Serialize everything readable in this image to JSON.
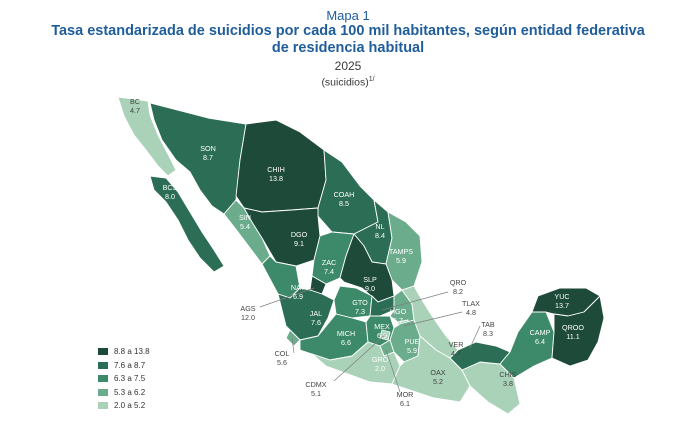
{
  "header": {
    "kicker": "Mapa 1",
    "title_line1": "Tasa estandarizada de suicidios por cada 100 mil habitantes, según entidad federativa",
    "title_line2": "de residencia habitual",
    "year": "2025",
    "unit": "(suicidios)",
    "unit_note": "1/"
  },
  "legend": [
    {
      "label": "8.8 a 13.8",
      "color": "#1e4a3a"
    },
    {
      "label": "7.6 a 8.7",
      "color": "#2c6e55"
    },
    {
      "label": "6.3 a 7.5",
      "color": "#3d8a6a"
    },
    {
      "label": "5.3 a 6.2",
      "color": "#6aac8c"
    },
    {
      "label": "2.0 a 5.2",
      "color": "#a9d2b9"
    }
  ],
  "states": [
    {
      "abbr": "BC",
      "value": "4.7"
    },
    {
      "abbr": "SON",
      "value": "8.7"
    },
    {
      "abbr": "CHIH",
      "value": "13.8"
    },
    {
      "abbr": "COAH",
      "value": "8.5"
    },
    {
      "abbr": "BCS",
      "value": "8.0"
    },
    {
      "abbr": "SIN",
      "value": "5.4"
    },
    {
      "abbr": "DGO",
      "value": "9.1"
    },
    {
      "abbr": "NL",
      "value": "8.4"
    },
    {
      "abbr": "TAMPS",
      "value": "5.9"
    },
    {
      "abbr": "ZAC",
      "value": "7.4"
    },
    {
      "abbr": "SLP",
      "value": "9.0"
    },
    {
      "abbr": "NAY",
      "value": "6.9"
    },
    {
      "abbr": "AGS",
      "value": "12.0"
    },
    {
      "abbr": "JAL",
      "value": "7.6"
    },
    {
      "abbr": "GTO",
      "value": "7.3"
    },
    {
      "abbr": "QRO",
      "value": "8.2"
    },
    {
      "abbr": "HGO",
      "value": "5.7"
    },
    {
      "abbr": "TLAX",
      "value": "4.8"
    },
    {
      "abbr": "MICH",
      "value": "6.6"
    },
    {
      "abbr": "MEX",
      "value": "6.9"
    },
    {
      "abbr": "PUE",
      "value": "5.9"
    },
    {
      "abbr": "COL",
      "value": "5.6"
    },
    {
      "abbr": "CDMX",
      "value": "5.1"
    },
    {
      "abbr": "GRO",
      "value": "2.0"
    },
    {
      "abbr": "MOR",
      "value": "6.1"
    },
    {
      "abbr": "OAX",
      "value": "5.2"
    },
    {
      "abbr": "VER",
      "value": "4.7"
    },
    {
      "abbr": "TAB",
      "value": "8.3"
    },
    {
      "abbr": "CHIS",
      "value": "3.8"
    },
    {
      "abbr": "CAMP",
      "value": "6.4"
    },
    {
      "abbr": "YUC",
      "value": "13.7"
    },
    {
      "abbr": "QROO",
      "value": "11.1"
    }
  ]
}
